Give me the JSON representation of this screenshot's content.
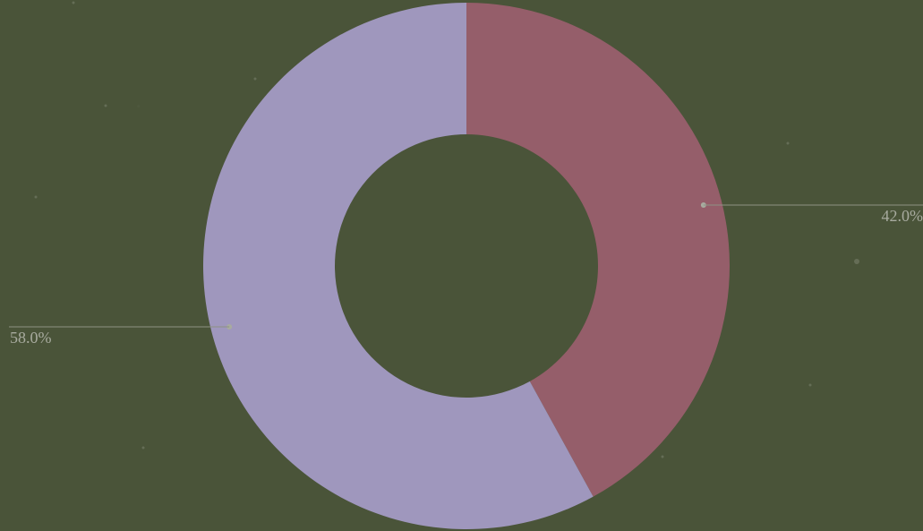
{
  "chart_data": {
    "type": "pie",
    "variant": "donut",
    "title": "",
    "values": [
      42.0,
      58.0
    ],
    "labels": [
      "42.0%",
      "58.0%"
    ],
    "colors": [
      "#955e6a",
      "#9f97bd"
    ],
    "grid": false,
    "legend": "none",
    "start_angle_deg": 90,
    "direction": "clockwise"
  },
  "background_color": "#4a5439"
}
